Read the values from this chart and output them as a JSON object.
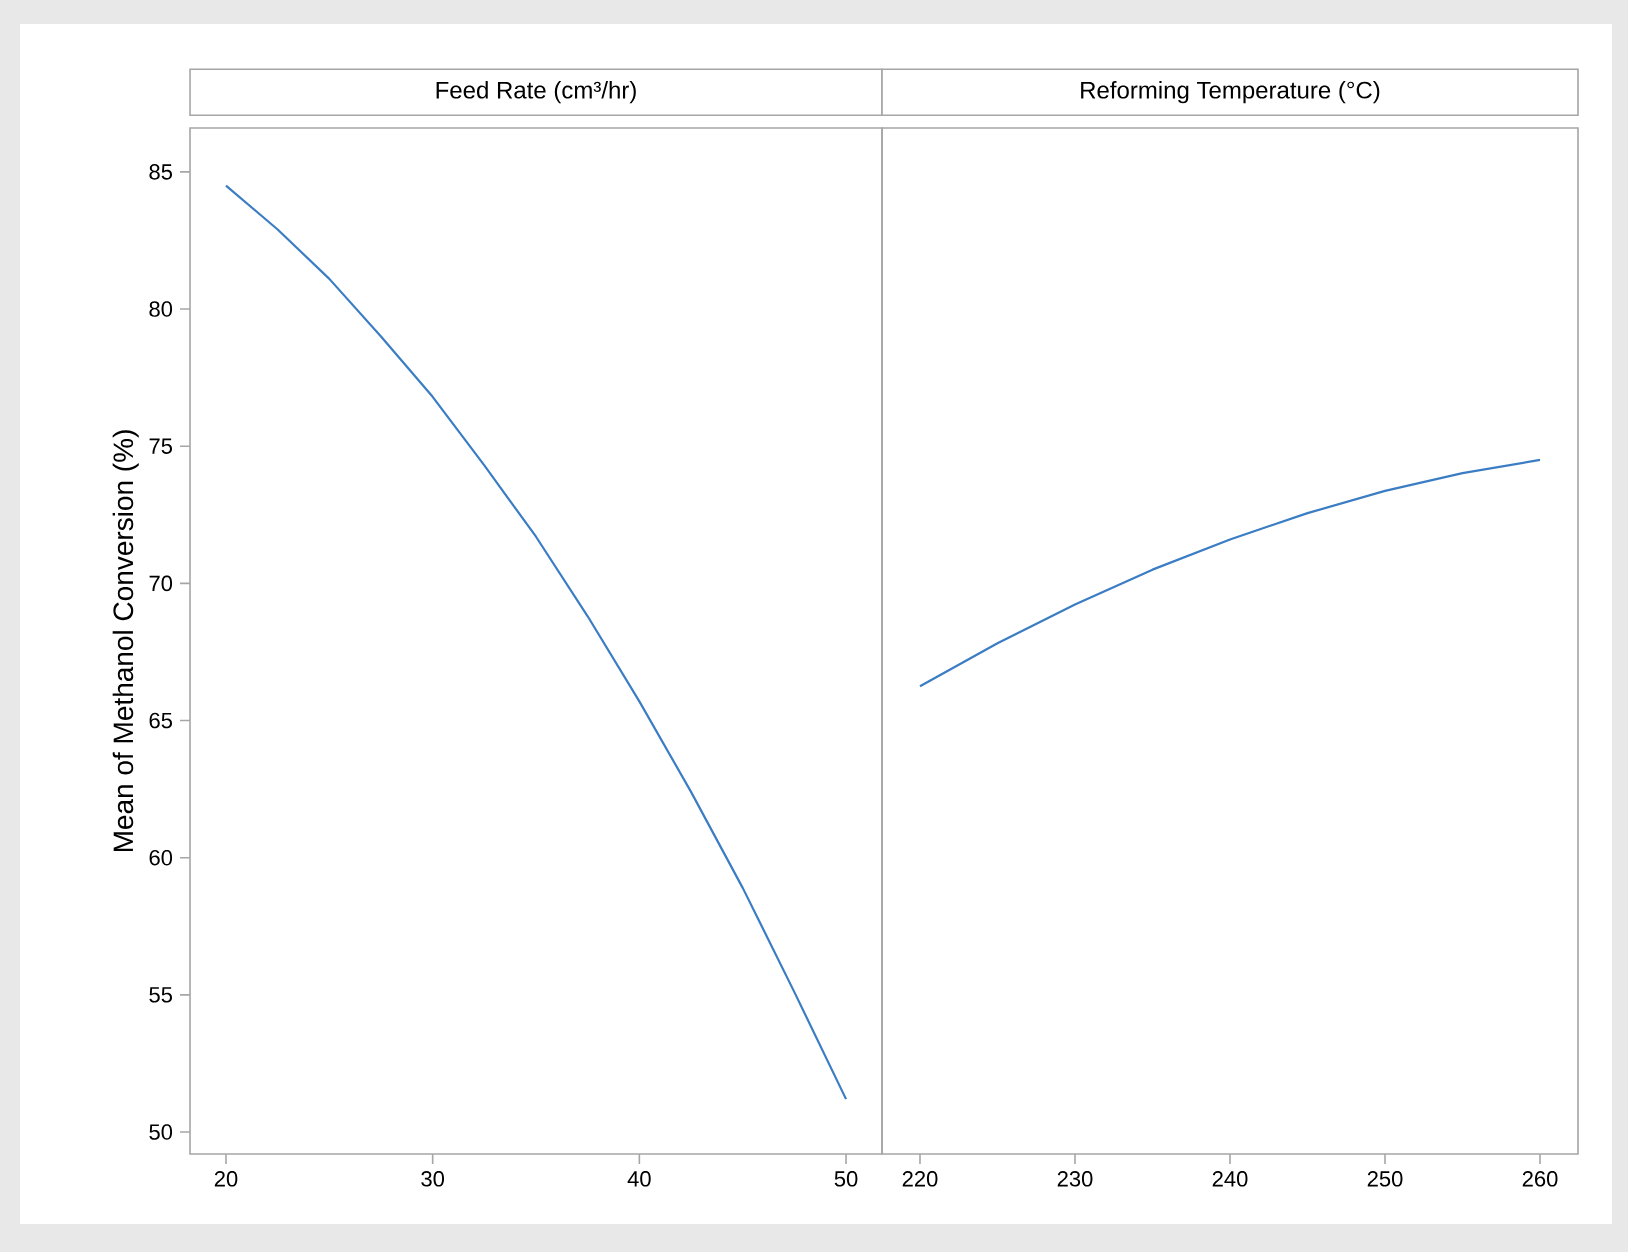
{
  "chart_data": [
    {
      "type": "line",
      "title": "Feed Rate (cm³/hr)",
      "ylabel": "Mean of Methanol Conversion (%)",
      "xlim": [
        18.26,
        51.74
      ],
      "xticks": [
        20,
        30,
        40,
        50
      ],
      "ylim": [
        49.2,
        86.6
      ],
      "yticks": [
        50,
        55,
        60,
        65,
        70,
        75,
        80,
        85
      ],
      "series": [
        {
          "color": "#3b7dc4",
          "x": [
            20,
            22.5,
            25,
            27.5,
            30,
            32.5,
            35,
            37.5,
            40,
            42.5,
            45,
            47.5,
            50
          ],
          "values": [
            84.5,
            82.9,
            81.1,
            79.0,
            76.8,
            74.3,
            71.7,
            68.8,
            65.7,
            62.4,
            58.9,
            55.1,
            51.2
          ]
        }
      ]
    },
    {
      "type": "line",
      "title": "Reforming Temperature (°C)",
      "xlim": [
        217.55,
        262.45
      ],
      "xticks": [
        220,
        230,
        240,
        250,
        260
      ],
      "ylim": [
        49.2,
        86.6
      ],
      "tick_labels": "x",
      "series": [
        {
          "color": "#3b7dc4",
          "x": [
            220,
            225,
            230,
            235,
            240,
            245,
            250,
            255,
            260
          ],
          "values": [
            66.25,
            67.82,
            69.23,
            70.5,
            71.6,
            72.56,
            73.37,
            74.02,
            74.5
          ]
        }
      ]
    }
  ]
}
